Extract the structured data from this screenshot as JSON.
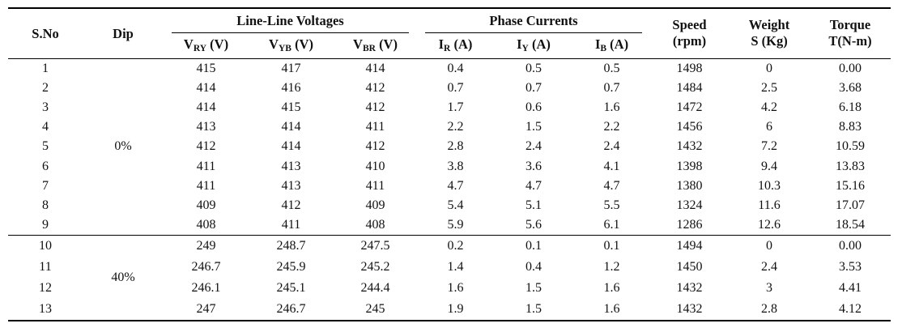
{
  "table": {
    "headers": {
      "sno": "S.No",
      "dip": "Dip",
      "group_voltages": "Line-Line Voltages",
      "group_currents": "Phase Currents",
      "speed_line1": "Speed",
      "speed_line2": "(rpm)",
      "weight_line1": "Weight",
      "weight_line2": "S (Kg)",
      "torque_line1": "Torque",
      "torque_line2": "T(N-m)"
    },
    "subheads": [
      {
        "main": "V",
        "sub": "RY",
        "unit": " (V)"
      },
      {
        "main": "V",
        "sub": "YB",
        "unit": " (V)"
      },
      {
        "main": "V",
        "sub": "BR",
        "unit": " (V)"
      },
      {
        "main": "I",
        "sub": "R",
        "unit": " (A)"
      },
      {
        "main": "I",
        "sub": "Y",
        "unit": " (A)"
      },
      {
        "main": "I",
        "sub": "B",
        "unit": " (A)"
      }
    ],
    "groups": [
      {
        "dip": "0%",
        "rows": [
          [
            "1",
            "415",
            "417",
            "414",
            "0.4",
            "0.5",
            "0.5",
            "1498",
            "0",
            "0.00"
          ],
          [
            "2",
            "414",
            "416",
            "412",
            "0.7",
            "0.7",
            "0.7",
            "1484",
            "2.5",
            "3.68"
          ],
          [
            "3",
            "414",
            "415",
            "412",
            "1.7",
            "0.6",
            "1.6",
            "1472",
            "4.2",
            "6.18"
          ],
          [
            "4",
            "413",
            "414",
            "411",
            "2.2",
            "1.5",
            "2.2",
            "1456",
            "6",
            "8.83"
          ],
          [
            "5",
            "412",
            "414",
            "412",
            "2.8",
            "2.4",
            "2.4",
            "1432",
            "7.2",
            "10.59"
          ],
          [
            "6",
            "411",
            "413",
            "410",
            "3.8",
            "3.6",
            "4.1",
            "1398",
            "9.4",
            "13.83"
          ],
          [
            "7",
            "411",
            "413",
            "411",
            "4.7",
            "4.7",
            "4.7",
            "1380",
            "10.3",
            "15.16"
          ],
          [
            "8",
            "409",
            "412",
            "409",
            "5.4",
            "5.1",
            "5.5",
            "1324",
            "11.6",
            "17.07"
          ],
          [
            "9",
            "408",
            "411",
            "408",
            "5.9",
            "5.6",
            "6.1",
            "1286",
            "12.6",
            "18.54"
          ]
        ]
      },
      {
        "dip": "40%",
        "rows": [
          [
            "10",
            "249",
            "248.7",
            "247.5",
            "0.2",
            "0.1",
            "0.1",
            "1494",
            "0",
            "0.00"
          ],
          [
            "11",
            "246.7",
            "245.9",
            "245.2",
            "1.4",
            "0.4",
            "1.2",
            "1450",
            "2.4",
            "3.53"
          ],
          [
            "12",
            "246.1",
            "245.1",
            "244.4",
            "1.6",
            "1.5",
            "1.6",
            "1432",
            "3",
            "4.41"
          ],
          [
            "13",
            "247",
            "246.7",
            "245",
            "1.9",
            "1.5",
            "1.6",
            "1432",
            "2.8",
            "4.12"
          ]
        ]
      }
    ]
  }
}
